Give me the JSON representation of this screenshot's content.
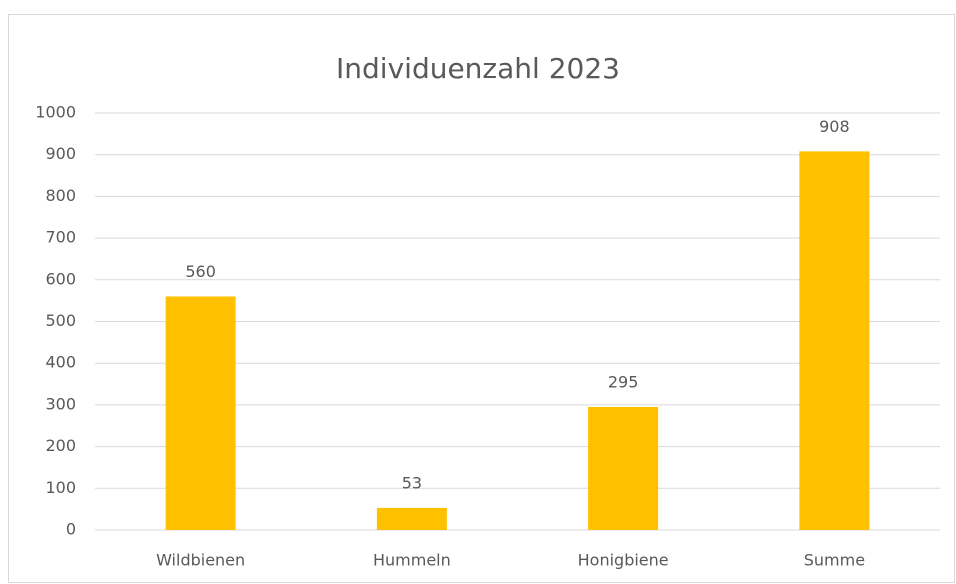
{
  "chart_data": {
    "type": "bar",
    "title": "Individuenzahl 2023",
    "categories": [
      "Wildbienen",
      "Hummeln",
      "Honigbiene",
      "Summe"
    ],
    "values": [
      560,
      53,
      295,
      908
    ],
    "color": "#ffc000",
    "ylim": [
      0,
      1000
    ],
    "yticks": [
      0,
      100,
      200,
      300,
      400,
      500,
      600,
      700,
      800,
      900,
      1000
    ],
    "grid": true
  }
}
